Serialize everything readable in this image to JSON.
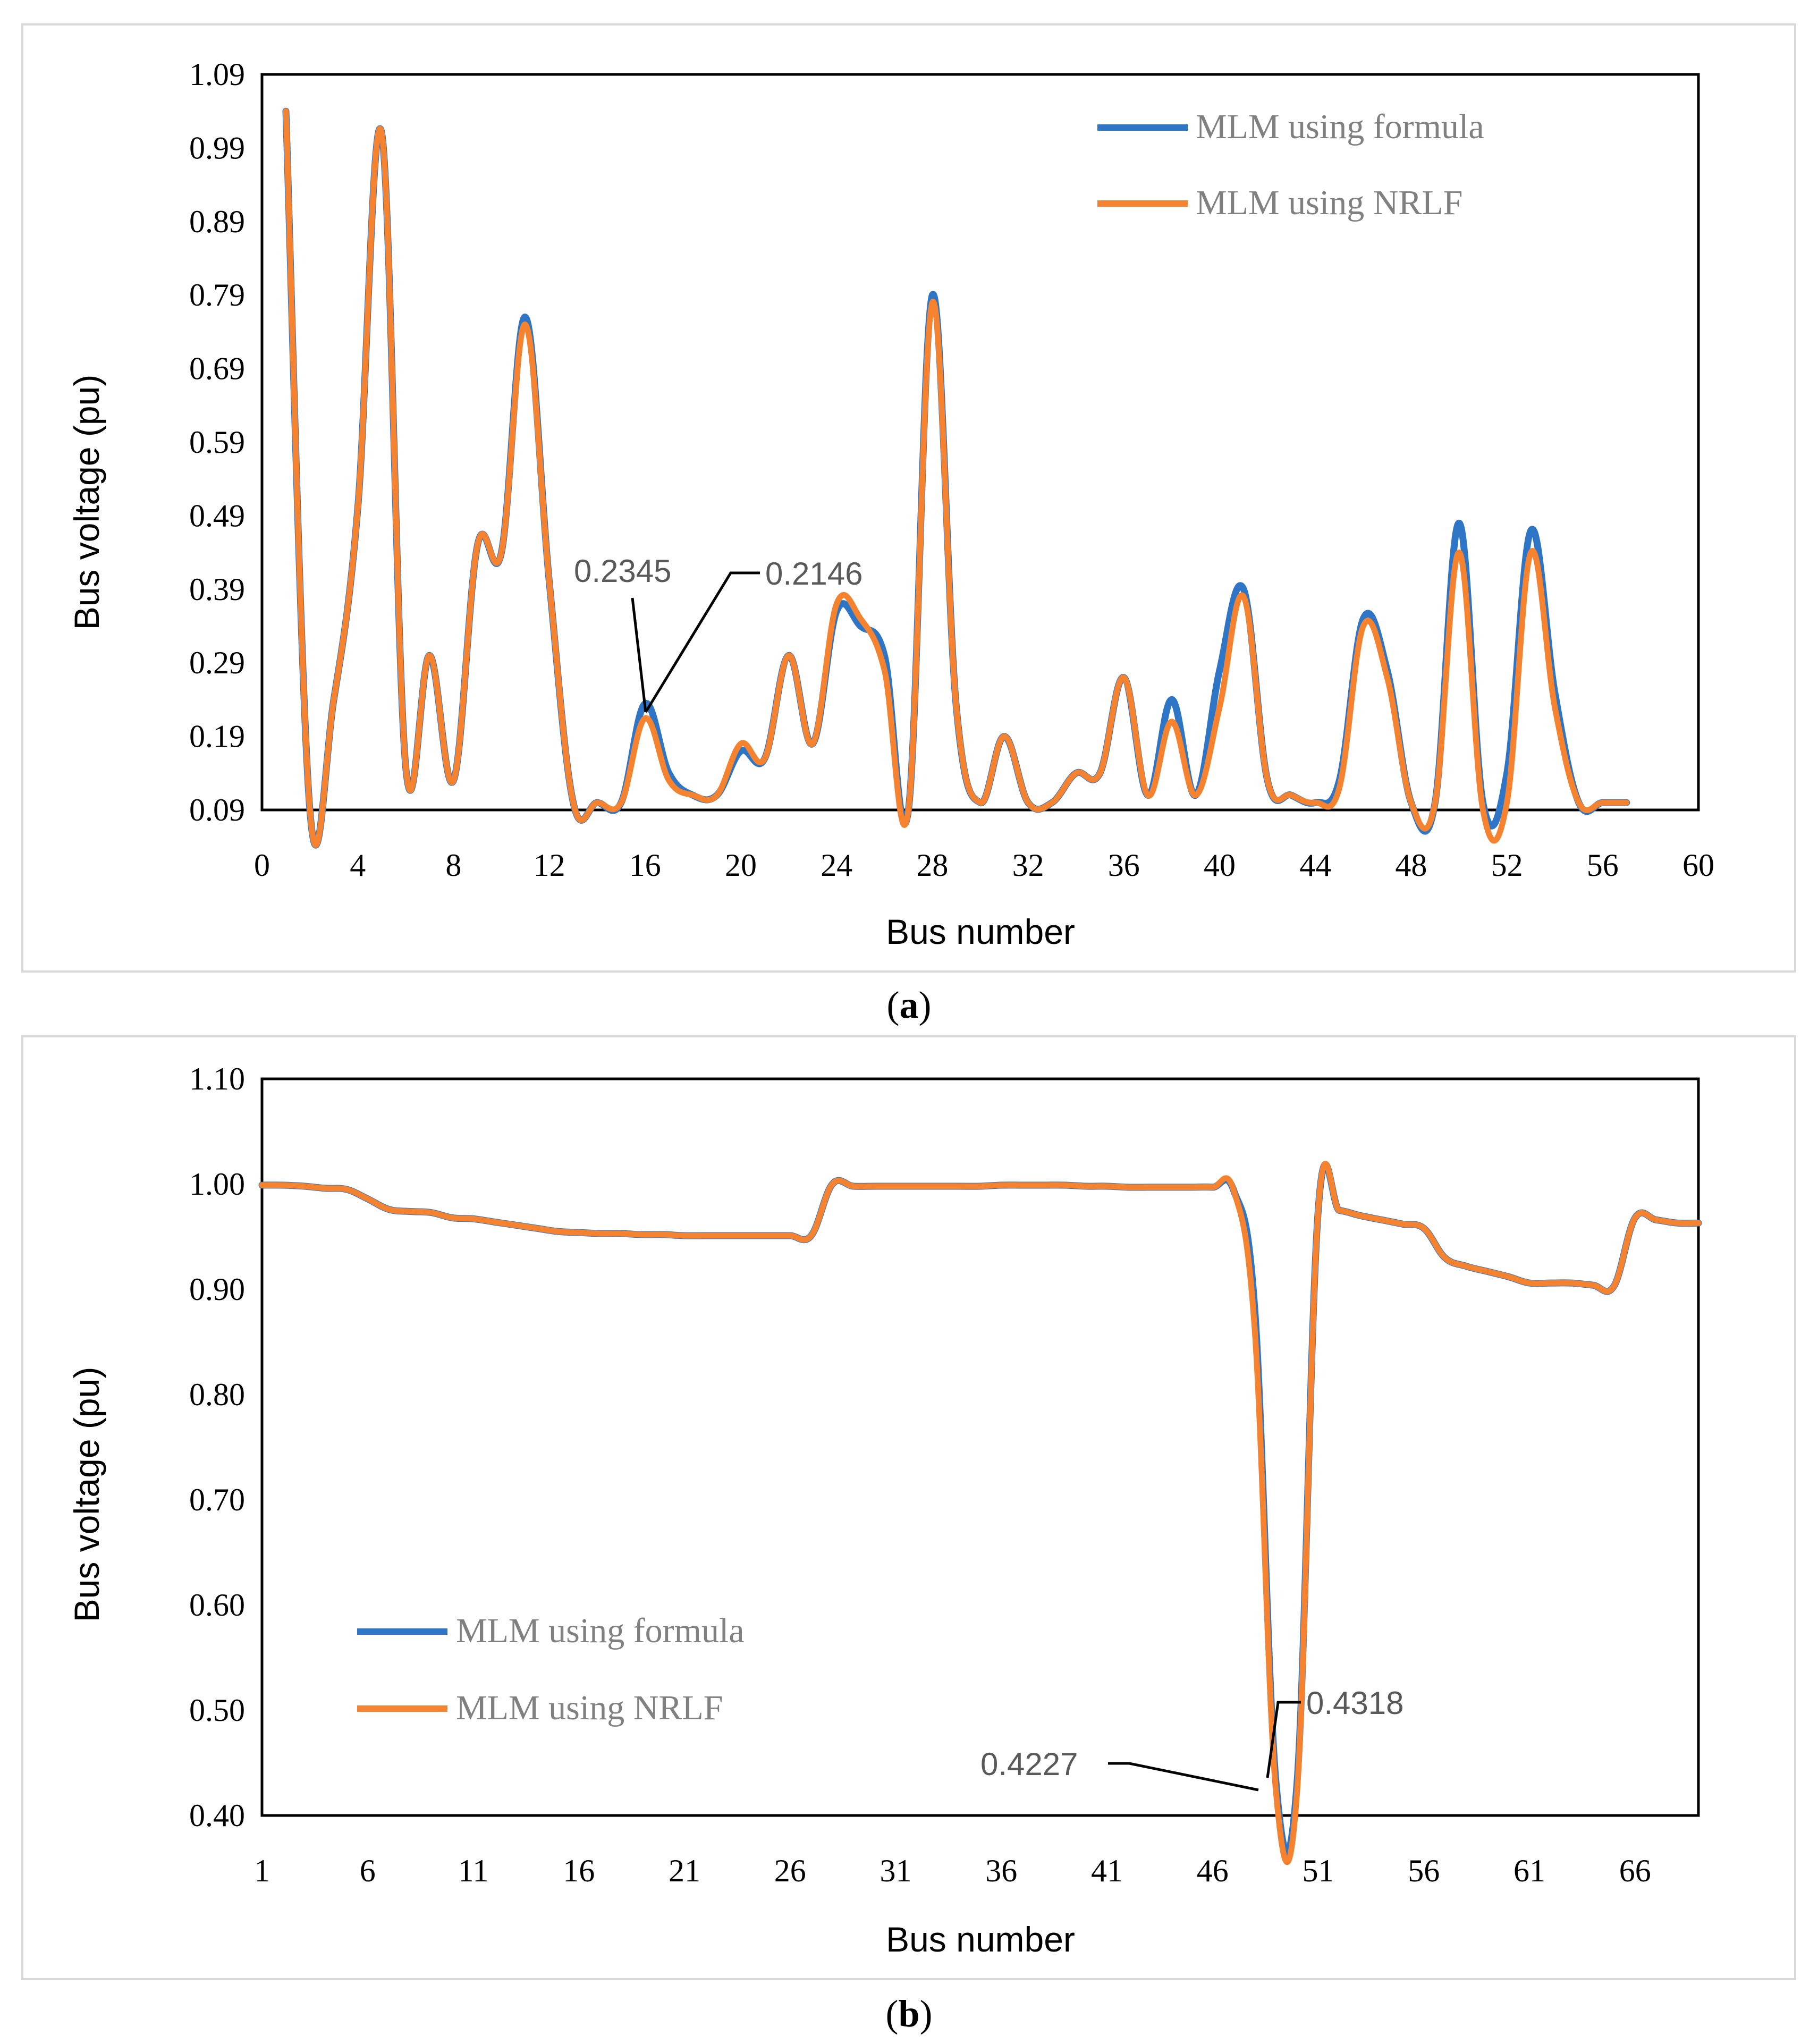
{
  "colors": {
    "formula": "#2E75C6",
    "nrlf": "#F5822F",
    "axis": "#000000",
    "frame": "#d9d9d9"
  },
  "chart_data": [
    {
      "panel_label": "a",
      "type": "line",
      "xlabel": "Bus number",
      "ylabel": "Bus voltage (pu)",
      "xlim": [
        0,
        60
      ],
      "ylim": [
        0.09,
        1.09
      ],
      "xticks": [
        "0",
        "4",
        "8",
        "12",
        "16",
        "20",
        "24",
        "28",
        "32",
        "36",
        "40",
        "44",
        "48",
        "52",
        "56",
        "60"
      ],
      "xtick_values": [
        0,
        4,
        8,
        12,
        16,
        20,
        24,
        28,
        32,
        36,
        40,
        44,
        48,
        52,
        56,
        60
      ],
      "yticks": [
        "1.09",
        "0.99",
        "0.89",
        "0.79",
        "0.69",
        "0.59",
        "0.49",
        "0.39",
        "0.29",
        "0.19",
        "0.09"
      ],
      "ytick_values": [
        1.09,
        0.99,
        0.89,
        0.79,
        0.69,
        0.59,
        0.49,
        0.39,
        0.29,
        0.19,
        0.09
      ],
      "legend": [
        "MLM using formula",
        "MLM using NRLF"
      ],
      "legend_position": "top-right",
      "series": [
        {
          "name": "MLM using formula",
          "x": [
            1,
            2,
            3,
            4,
            5,
            6,
            7,
            8,
            9,
            10,
            11,
            12,
            13,
            14,
            15,
            16,
            17,
            18,
            19,
            20,
            21,
            22,
            23,
            24,
            25,
            26,
            27,
            28,
            29,
            30,
            31,
            32,
            33,
            34,
            35,
            36,
            37,
            38,
            39,
            40,
            41,
            42,
            43,
            44,
            45,
            46,
            47,
            48,
            49,
            50,
            51,
            52,
            53,
            54,
            55,
            56,
            57
          ],
          "values": [
            1.04,
            0.09,
            0.24,
            0.5,
            1.01,
            0.15,
            0.3,
            0.13,
            0.45,
            0.44,
            0.76,
            0.4,
            0.1,
            0.1,
            0.1,
            0.2345,
            0.14,
            0.11,
            0.11,
            0.17,
            0.16,
            0.3,
            0.18,
            0.36,
            0.34,
            0.3,
            0.09,
            0.79,
            0.23,
            0.1,
            0.19,
            0.1,
            0.1,
            0.14,
            0.14,
            0.27,
            0.11,
            0.24,
            0.11,
            0.28,
            0.39,
            0.13,
            0.11,
            0.1,
            0.13,
            0.35,
            0.28,
            0.1,
            0.1,
            0.48,
            0.1,
            0.14,
            0.47,
            0.25,
            0.1,
            0.1,
            0.1
          ]
        },
        {
          "name": "MLM using NRLF",
          "x": [
            1,
            2,
            3,
            4,
            5,
            6,
            7,
            8,
            9,
            10,
            11,
            12,
            13,
            14,
            15,
            16,
            17,
            18,
            19,
            20,
            21,
            22,
            23,
            24,
            25,
            26,
            27,
            28,
            29,
            30,
            31,
            32,
            33,
            34,
            35,
            36,
            37,
            38,
            39,
            40,
            41,
            42,
            43,
            44,
            45,
            46,
            47,
            48,
            49,
            50,
            51,
            52,
            53,
            54,
            55,
            56,
            57
          ],
          "values": [
            1.04,
            0.09,
            0.24,
            0.5,
            1.01,
            0.15,
            0.3,
            0.13,
            0.45,
            0.44,
            0.75,
            0.4,
            0.1,
            0.1,
            0.1,
            0.2146,
            0.13,
            0.11,
            0.11,
            0.18,
            0.16,
            0.3,
            0.18,
            0.37,
            0.35,
            0.28,
            0.09,
            0.78,
            0.23,
            0.1,
            0.19,
            0.1,
            0.1,
            0.14,
            0.14,
            0.27,
            0.11,
            0.21,
            0.11,
            0.23,
            0.38,
            0.13,
            0.11,
            0.1,
            0.12,
            0.34,
            0.27,
            0.1,
            0.1,
            0.44,
            0.09,
            0.1,
            0.44,
            0.23,
            0.1,
            0.1,
            0.1
          ]
        }
      ],
      "annotations": [
        {
          "text": "0.2345",
          "series": "MLM using formula",
          "x": 16,
          "y": 0.2345
        },
        {
          "text": "0.2146",
          "series": "MLM using NRLF",
          "x": 16,
          "y": 0.2146
        }
      ]
    },
    {
      "panel_label": "b",
      "type": "line",
      "xlabel": "Bus number",
      "ylabel": "Bus voltage (pu)",
      "xlim": [
        1,
        69
      ],
      "ylim": [
        0.4,
        1.1
      ],
      "xticks": [
        "1",
        "6",
        "11",
        "16",
        "21",
        "26",
        "31",
        "36",
        "41",
        "46",
        "51",
        "56",
        "61",
        "66"
      ],
      "xtick_values": [
        1,
        6,
        11,
        16,
        21,
        26,
        31,
        36,
        41,
        46,
        51,
        56,
        61,
        66
      ],
      "yticks": [
        "1.10",
        "1.00",
        "0.90",
        "0.80",
        "0.70",
        "0.60",
        "0.50",
        "0.40"
      ],
      "ytick_values": [
        1.1,
        1.0,
        0.9,
        0.8,
        0.7,
        0.6,
        0.5,
        0.4
      ],
      "legend": [
        "MLM using formula",
        "MLM using NRLF"
      ],
      "legend_position": "lower-left",
      "series": [
        {
          "name": "MLM using formula",
          "x": [
            1,
            2,
            3,
            4,
            5,
            6,
            7,
            8,
            9,
            10,
            11,
            12,
            13,
            14,
            15,
            16,
            17,
            18,
            19,
            20,
            21,
            22,
            23,
            24,
            25,
            26,
            27,
            28,
            29,
            30,
            31,
            32,
            33,
            34,
            35,
            36,
            37,
            38,
            39,
            40,
            41,
            42,
            43,
            44,
            45,
            46,
            47,
            48,
            49,
            50,
            51,
            52,
            53,
            54,
            55,
            56,
            57,
            58,
            59,
            60,
            61,
            62,
            63,
            64,
            65,
            66,
            67,
            68,
            69
          ],
          "values": [
            0.999,
            0.999,
            0.998,
            0.996,
            0.995,
            0.986,
            0.976,
            0.974,
            0.973,
            0.968,
            0.967,
            0.964,
            0.961,
            0.958,
            0.955,
            0.954,
            0.953,
            0.953,
            0.952,
            0.952,
            0.951,
            0.951,
            0.951,
            0.951,
            0.951,
            0.951,
            0.951,
            1.0,
            0.998,
            0.998,
            0.998,
            0.998,
            0.998,
            0.998,
            0.998,
            0.999,
            0.999,
            0.999,
            0.999,
            0.998,
            0.998,
            0.997,
            0.997,
            0.997,
            0.997,
            0.997,
            0.994,
            0.88,
            0.4318,
            0.4318,
            0.975,
            0.975,
            0.97,
            0.966,
            0.962,
            0.958,
            0.93,
            0.922,
            0.917,
            0.912,
            0.906,
            0.906,
            0.906,
            0.904,
            0.903,
            0.968,
            0.966,
            0.963,
            0.963
          ]
        },
        {
          "name": "MLM using NRLF",
          "x": [
            1,
            2,
            3,
            4,
            5,
            6,
            7,
            8,
            9,
            10,
            11,
            12,
            13,
            14,
            15,
            16,
            17,
            18,
            19,
            20,
            21,
            22,
            23,
            24,
            25,
            26,
            27,
            28,
            29,
            30,
            31,
            32,
            33,
            34,
            35,
            36,
            37,
            38,
            39,
            40,
            41,
            42,
            43,
            44,
            45,
            46,
            47,
            48,
            49,
            50,
            51,
            52,
            53,
            54,
            55,
            56,
            57,
            58,
            59,
            60,
            61,
            62,
            63,
            64,
            65,
            66,
            67,
            68,
            69
          ],
          "values": [
            0.999,
            0.999,
            0.998,
            0.996,
            0.995,
            0.986,
            0.976,
            0.974,
            0.973,
            0.968,
            0.967,
            0.964,
            0.961,
            0.958,
            0.955,
            0.954,
            0.953,
            0.953,
            0.952,
            0.952,
            0.951,
            0.951,
            0.951,
            0.951,
            0.951,
            0.951,
            0.951,
            1.0,
            0.998,
            0.998,
            0.998,
            0.998,
            0.998,
            0.998,
            0.998,
            0.999,
            0.999,
            0.999,
            0.999,
            0.998,
            0.998,
            0.997,
            0.997,
            0.997,
            0.997,
            0.997,
            0.994,
            0.86,
            0.4227,
            0.4227,
            0.975,
            0.975,
            0.97,
            0.966,
            0.962,
            0.958,
            0.93,
            0.922,
            0.917,
            0.912,
            0.906,
            0.906,
            0.906,
            0.904,
            0.903,
            0.968,
            0.966,
            0.963,
            0.963
          ]
        }
      ],
      "annotations": [
        {
          "text": "0.4318",
          "series": "MLM using formula",
          "x": 49.5,
          "y": 0.4318
        },
        {
          "text": "0.4227",
          "series": "MLM using NRLF",
          "x": 49.3,
          "y": 0.4227
        }
      ]
    }
  ]
}
